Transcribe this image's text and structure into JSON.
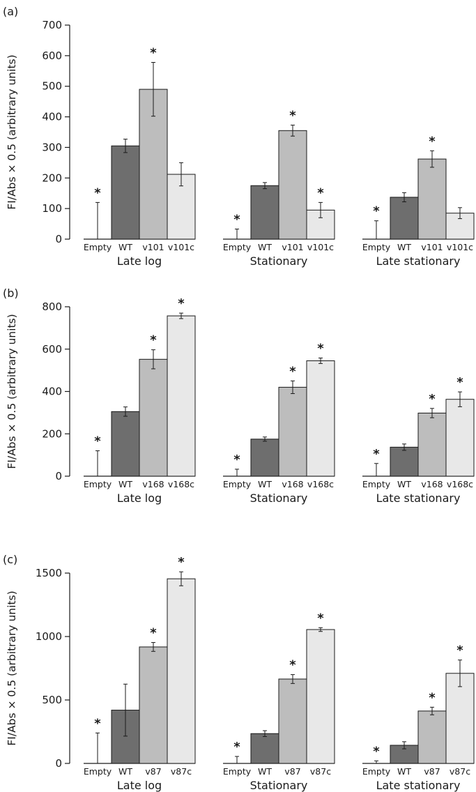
{
  "chart_data": [
    {
      "type": "bar",
      "panel": "(a)",
      "ylabel": "FI/Abs × 0.5 (arbitrary units)",
      "ylim": [
        0,
        700
      ],
      "yticks": [
        0,
        100,
        200,
        300,
        400,
        500,
        600,
        700
      ],
      "categories": [
        "Empty",
        "WT",
        "v101",
        "v101c"
      ],
      "colors": [
        "#6e6e6e",
        "#bdbdbd",
        "#e8e8e8"
      ],
      "groups": [
        {
          "label": "Late log",
          "values": [
            0,
            305,
            490,
            212
          ],
          "errors": [
            120,
            22,
            88,
            38
          ],
          "significant": [
            true,
            false,
            true,
            false
          ]
        },
        {
          "label": "Stationary",
          "values": [
            0,
            175,
            355,
            95
          ],
          "errors": [
            33,
            10,
            18,
            25
          ],
          "significant": [
            true,
            false,
            true,
            true
          ]
        },
        {
          "label": "Late stationary",
          "values": [
            0,
            137,
            262,
            85
          ],
          "errors": [
            60,
            15,
            27,
            18
          ],
          "significant": [
            true,
            false,
            true,
            false
          ]
        }
      ],
      "annotation": "*"
    },
    {
      "type": "bar",
      "panel": "(b)",
      "ylabel": "FI/Abs × 0.5 (arbitrary units)",
      "ylim": [
        0,
        800
      ],
      "yticks": [
        0,
        200,
        400,
        600,
        800
      ],
      "categories": [
        "Empty",
        "WT",
        "v168",
        "v168c"
      ],
      "colors": [
        "#6e6e6e",
        "#bdbdbd",
        "#e8e8e8"
      ],
      "groups": [
        {
          "label": "Late log",
          "values": [
            0,
            305,
            552,
            757
          ],
          "errors": [
            120,
            22,
            45,
            13
          ],
          "significant": [
            true,
            false,
            true,
            true
          ]
        },
        {
          "label": "Stationary",
          "values": [
            0,
            175,
            420,
            545
          ],
          "errors": [
            33,
            10,
            30,
            13
          ],
          "significant": [
            true,
            false,
            true,
            true
          ]
        },
        {
          "label": "Late stationary",
          "values": [
            0,
            137,
            298,
            363
          ],
          "errors": [
            60,
            15,
            22,
            35
          ],
          "significant": [
            true,
            false,
            true,
            true
          ]
        }
      ],
      "annotation": "*"
    },
    {
      "type": "bar",
      "panel": "(c)",
      "ylabel": "FI/Abs × 0.5 (arbitrary units)",
      "ylim": [
        0,
        1500
      ],
      "yticks": [
        0,
        500,
        1000,
        1500
      ],
      "categories": [
        "Empty",
        "WT",
        "v87",
        "v87c"
      ],
      "colors": [
        "#6e6e6e",
        "#bdbdbd",
        "#e8e8e8"
      ],
      "groups": [
        {
          "label": "Late log",
          "values": [
            0,
            420,
            918,
            1455
          ],
          "errors": [
            240,
            205,
            35,
            55
          ],
          "significant": [
            true,
            false,
            true,
            true
          ]
        },
        {
          "label": "Stationary",
          "values": [
            0,
            235,
            665,
            1055
          ],
          "errors": [
            55,
            23,
            35,
            15
          ],
          "significant": [
            true,
            false,
            true,
            true
          ]
        },
        {
          "label": "Late stationary",
          "values": [
            0,
            143,
            413,
            710
          ],
          "errors": [
            20,
            28,
            30,
            105
          ],
          "significant": [
            true,
            false,
            true,
            true
          ]
        }
      ],
      "annotation": "*"
    }
  ]
}
